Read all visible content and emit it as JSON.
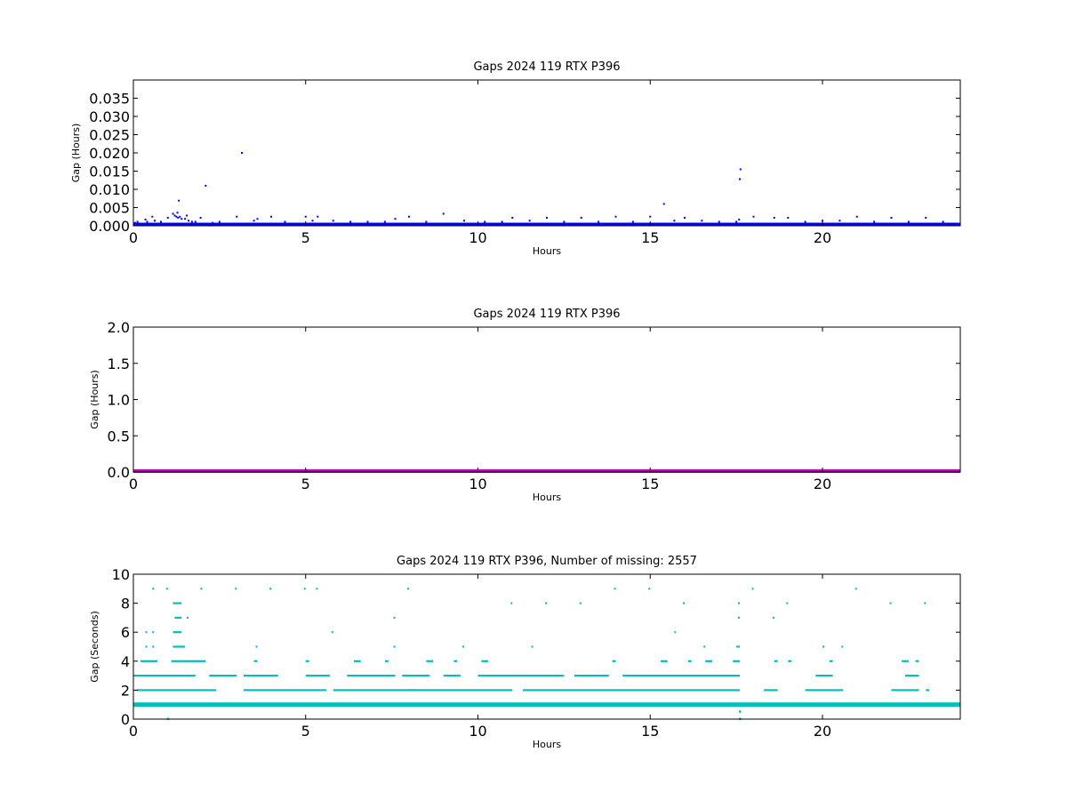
{
  "chart_data": [
    {
      "type": "scatter",
      "title": "Gaps 2024 119 RTX  P396",
      "xlabel": "Hours",
      "ylabel": "Gap (Hours)",
      "xlim": [
        0,
        24
      ],
      "ylim": [
        0,
        0.04
      ],
      "xticks": [
        "0",
        "5",
        "10",
        "15",
        "20"
      ],
      "yticks": [
        "0.000",
        "0.005",
        "0.010",
        "0.015",
        "0.020",
        "0.025",
        "0.030",
        "0.035"
      ],
      "color": "#0000ff",
      "grid": false,
      "band": {
        "y0": 0,
        "y1": 0.0006
      },
      "points": [
        [
          0.05,
          0.0008
        ],
        [
          0.12,
          0.0011
        ],
        [
          0.35,
          0.0017
        ],
        [
          0.4,
          0.0011
        ],
        [
          0.55,
          0.0025
        ],
        [
          0.62,
          0.0014
        ],
        [
          0.8,
          0.0011
        ],
        [
          1.0,
          0.0022
        ],
        [
          1.15,
          0.0033
        ],
        [
          1.2,
          0.0028
        ],
        [
          1.25,
          0.0025
        ],
        [
          1.28,
          0.0036
        ],
        [
          1.3,
          0.0022
        ],
        [
          1.32,
          0.0069
        ],
        [
          1.35,
          0.0025
        ],
        [
          1.4,
          0.0019
        ],
        [
          1.5,
          0.0019
        ],
        [
          1.55,
          0.0028
        ],
        [
          1.6,
          0.0014
        ],
        [
          1.7,
          0.0011
        ],
        [
          1.8,
          0.0011
        ],
        [
          1.95,
          0.0022
        ],
        [
          2.1,
          0.011
        ],
        [
          2.3,
          0.0008
        ],
        [
          2.5,
          0.0011
        ],
        [
          3.0,
          0.0025
        ],
        [
          3.15,
          0.02
        ],
        [
          3.5,
          0.0014
        ],
        [
          3.6,
          0.0019
        ],
        [
          4.0,
          0.0025
        ],
        [
          4.4,
          0.0011
        ],
        [
          5.0,
          0.0025
        ],
        [
          5.2,
          0.0014
        ],
        [
          5.35,
          0.0025
        ],
        [
          5.8,
          0.0014
        ],
        [
          6.3,
          0.0011
        ],
        [
          6.8,
          0.0011
        ],
        [
          7.3,
          0.0011
        ],
        [
          7.6,
          0.0019
        ],
        [
          8.0,
          0.0025
        ],
        [
          8.5,
          0.0011
        ],
        [
          9.0,
          0.0033
        ],
        [
          9.6,
          0.0014
        ],
        [
          10.2,
          0.0011
        ],
        [
          10.7,
          0.0011
        ],
        [
          11.0,
          0.0022
        ],
        [
          11.5,
          0.0014
        ],
        [
          12.0,
          0.0022
        ],
        [
          12.5,
          0.0011
        ],
        [
          13.0,
          0.0022
        ],
        [
          13.5,
          0.0011
        ],
        [
          14.0,
          0.0025
        ],
        [
          14.5,
          0.0011
        ],
        [
          15.0,
          0.0025
        ],
        [
          15.4,
          0.006
        ],
        [
          15.7,
          0.0014
        ],
        [
          16.0,
          0.0022
        ],
        [
          16.5,
          0.0014
        ],
        [
          17.0,
          0.0011
        ],
        [
          17.5,
          0.0011
        ],
        [
          17.58,
          0.0017
        ],
        [
          17.6,
          0.0128
        ],
        [
          17.62,
          0.0155
        ],
        [
          18.0,
          0.0025
        ],
        [
          18.6,
          0.0022
        ],
        [
          19.0,
          0.0022
        ],
        [
          19.5,
          0.0011
        ],
        [
          20.0,
          0.0014
        ],
        [
          20.5,
          0.0014
        ],
        [
          21.0,
          0.0025
        ],
        [
          21.5,
          0.0011
        ],
        [
          22.0,
          0.0022
        ],
        [
          22.5,
          0.0011
        ],
        [
          23.0,
          0.0022
        ],
        [
          23.5,
          0.0011
        ]
      ]
    },
    {
      "type": "line",
      "title": "Gaps 2024 119 RTX  P396",
      "xlabel": "Hours",
      "ylabel": "Gap (Hours)",
      "xlim": [
        0,
        24
      ],
      "ylim": [
        0,
        2.0
      ],
      "xticks": [
        "0",
        "5",
        "10",
        "15",
        "20"
      ],
      "yticks": [
        "0.0",
        "0.5",
        "1.0",
        "1.5",
        "2.0"
      ],
      "color": "#bf00bf",
      "grid": false,
      "baseline": 0.0006,
      "points": [
        [
          17.6,
          0.015
        ]
      ]
    },
    {
      "type": "scatter",
      "title": "Gaps 2024 119 RTX  P396, Number of missing: 2557",
      "xlabel": "Hours",
      "ylabel": "Gap (Seconds)",
      "xlim": [
        0,
        24
      ],
      "ylim": [
        0,
        10
      ],
      "xticks": [
        "0",
        "5",
        "10",
        "15",
        "20"
      ],
      "yticks": [
        "0",
        "2",
        "4",
        "6",
        "8",
        "10"
      ],
      "color": "#00bfbf",
      "grid": false,
      "levels": [
        {
          "y": 1,
          "segments": [
            [
              0,
              24
            ]
          ],
          "thick": true
        },
        {
          "y": 2,
          "segments": [
            [
              0.1,
              2.4
            ],
            [
              3.2,
              5.6
            ],
            [
              5.8,
              8.2
            ],
            [
              8.0,
              11.0
            ],
            [
              11.3,
              13.6
            ],
            [
              13.6,
              17.6
            ],
            [
              18.3,
              18.7
            ],
            [
              19.5,
              20.6
            ],
            [
              22.0,
              22.8
            ],
            [
              23.0,
              23.1
            ]
          ]
        },
        {
          "y": 3,
          "segments": [
            [
              0,
              1.8
            ],
            [
              2.2,
              3.0
            ],
            [
              3.2,
              4.2
            ],
            [
              5.0,
              5.7
            ],
            [
              6.2,
              7.6
            ],
            [
              7.8,
              8.6
            ],
            [
              9.0,
              9.5
            ],
            [
              10.0,
              12.5
            ],
            [
              12.8,
              13.8
            ],
            [
              14.2,
              17.6
            ],
            [
              19.8,
              20.3
            ],
            [
              22.4,
              22.8
            ]
          ]
        },
        {
          "y": 4,
          "segments": [
            [
              0.2,
              0.7
            ],
            [
              1.1,
              2.1
            ],
            [
              3.5,
              3.6
            ],
            [
              5.0,
              5.1
            ],
            [
              6.4,
              6.6
            ],
            [
              7.3,
              7.4
            ],
            [
              8.5,
              8.7
            ],
            [
              9.3,
              9.4
            ],
            [
              10.1,
              10.3
            ],
            [
              13.9,
              14.0
            ],
            [
              15.3,
              15.5
            ],
            [
              16.1,
              16.2
            ],
            [
              16.6,
              16.8
            ],
            [
              17.4,
              17.6
            ],
            [
              18.6,
              18.7
            ],
            [
              19.0,
              19.1
            ],
            [
              20.2,
              20.3
            ],
            [
              22.3,
              22.5
            ],
            [
              22.7,
              22.8
            ]
          ]
        },
        {
          "y": 5,
          "segments": [
            [
              0.35,
              0.4
            ],
            [
              0.55,
              0.6
            ],
            [
              1.15,
              1.5
            ],
            [
              3.55,
              3.6
            ],
            [
              7.55,
              7.6
            ],
            [
              9.55,
              9.6
            ],
            [
              11.55,
              11.6
            ],
            [
              16.55,
              16.6
            ],
            [
              17.5,
              17.6
            ],
            [
              20.0,
              20.05
            ],
            [
              20.55,
              20.6
            ]
          ]
        },
        {
          "y": 6,
          "segments": [
            [
              0.35,
              0.4
            ],
            [
              0.55,
              0.6
            ],
            [
              1.15,
              1.4
            ],
            [
              5.75,
              5.8
            ],
            [
              15.7,
              15.75
            ]
          ]
        },
        {
          "y": 7,
          "segments": [
            [
              1.2,
              1.4
            ],
            [
              1.55,
              1.6
            ],
            [
              7.55,
              7.6
            ],
            [
              17.55,
              17.6
            ],
            [
              18.55,
              18.6
            ]
          ]
        },
        {
          "y": 8,
          "segments": [
            [
              1.15,
              1.4
            ],
            [
              10.95,
              11.0
            ],
            [
              11.95,
              12.0
            ],
            [
              12.95,
              13.0
            ],
            [
              15.95,
              16.0
            ],
            [
              17.55,
              17.6
            ],
            [
              18.95,
              19.0
            ],
            [
              21.95,
              22.0
            ],
            [
              22.95,
              23.0
            ]
          ]
        },
        {
          "y": 9,
          "segments": [
            [
              0.55,
              0.6
            ],
            [
              0.95,
              1.0
            ],
            [
              1.95,
              2.0
            ],
            [
              2.95,
              3.0
            ],
            [
              3.95,
              4.0
            ],
            [
              4.95,
              5.0
            ],
            [
              5.3,
              5.35
            ],
            [
              7.95,
              8.0
            ],
            [
              13.95,
              14.0
            ],
            [
              14.95,
              15.0
            ],
            [
              17.95,
              18.0
            ],
            [
              20.95,
              21.0
            ]
          ]
        }
      ],
      "extra_points": [
        [
          1.0,
          0
        ],
        [
          17.6,
          0
        ],
        [
          17.6,
          0.5
        ]
      ]
    }
  ]
}
